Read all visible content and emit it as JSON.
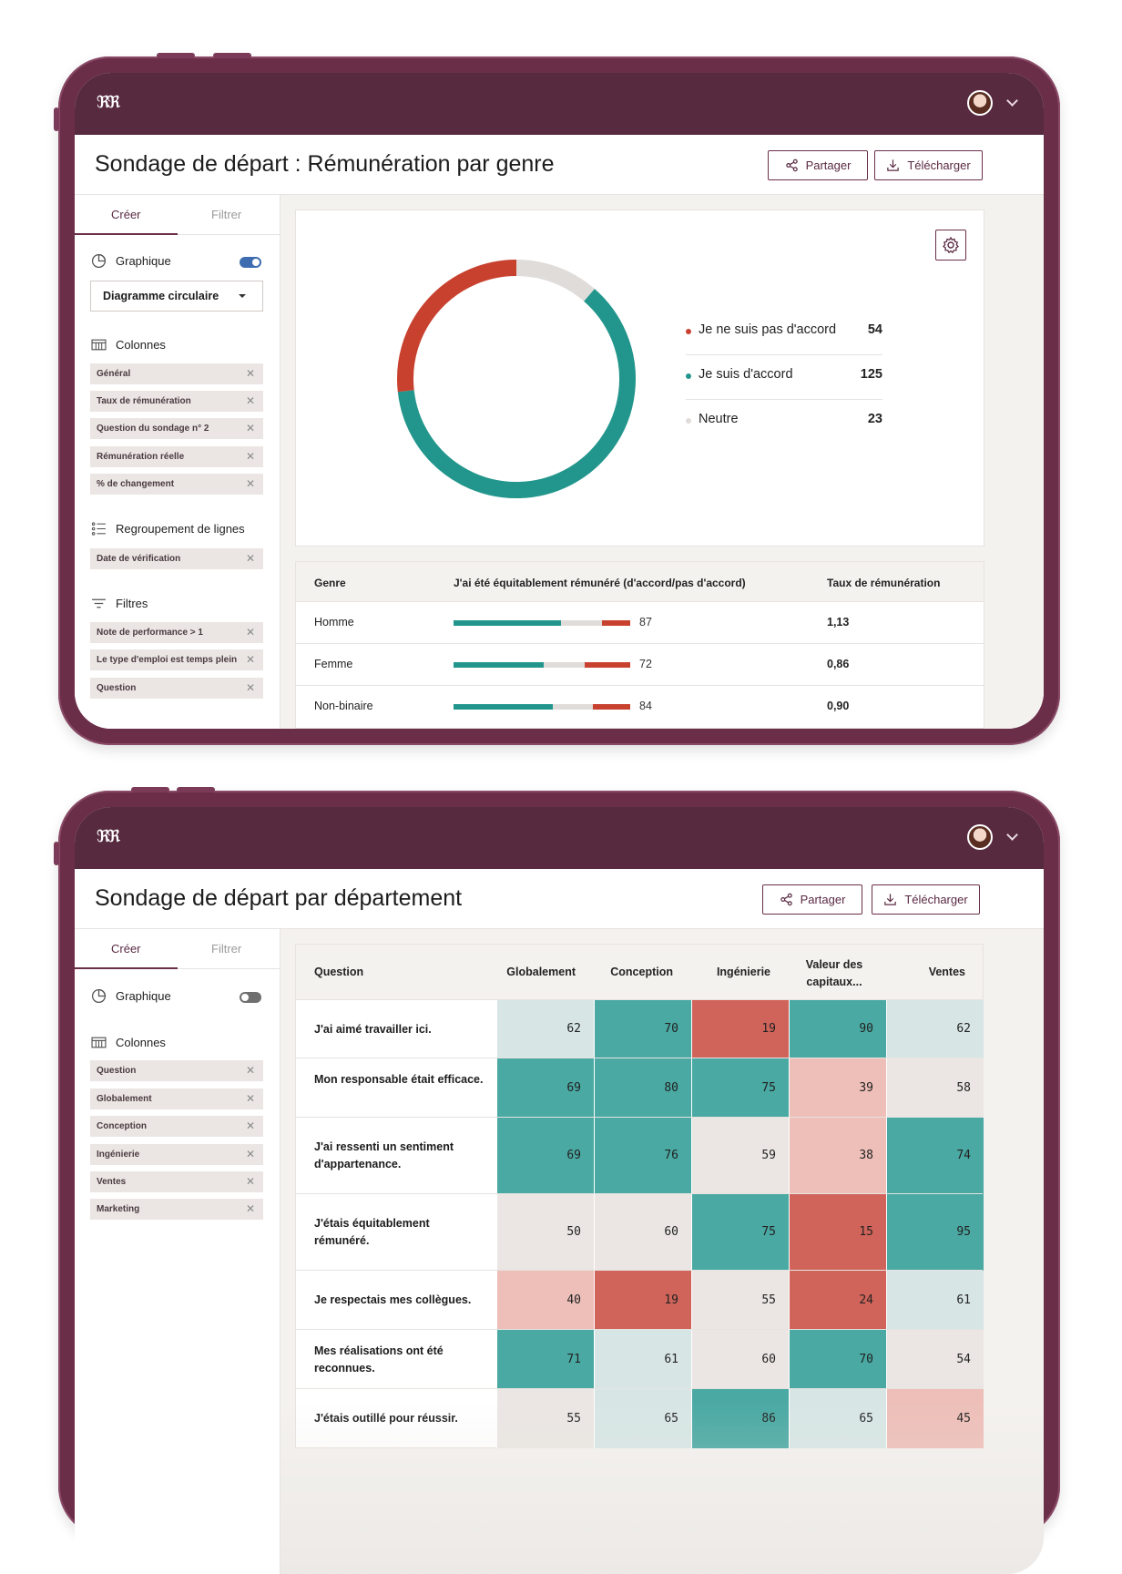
{
  "screen1": {
    "logo": "ℜℜ",
    "title": "Sondage de départ : Rémunération par genre",
    "share_label": "Partager",
    "download_label": "Télécharger",
    "tabs": {
      "create": "Créer",
      "filter": "Filtrer"
    },
    "chart_section": {
      "label": "Graphique",
      "toggle_on": true,
      "select_value": "Diagramme circulaire"
    },
    "columns_section": {
      "label": "Colonnes",
      "chips": [
        "Général",
        "Taux de rémunération",
        "Question du sondage n° 2",
        "Rémunération réelle",
        "% de changement"
      ]
    },
    "grouping_section": {
      "label": "Regroupement de lignes",
      "chips": [
        "Date de vérification"
      ]
    },
    "filters_section": {
      "label": "Filtres",
      "chips": [
        "Note de performance > 1",
        "Le type d'emploi est temps plein",
        "Question"
      ]
    },
    "legend": [
      {
        "label": "Je ne suis pas d'accord",
        "value": "54",
        "color": "#c8412f"
      },
      {
        "label": "Je suis d'accord",
        "value": "125",
        "color": "#22968c"
      },
      {
        "label": "Neutre",
        "value": "23",
        "color": "#e0dcda"
      }
    ],
    "table": {
      "headers": [
        "Genre",
        "J'ai été équitablement rémunéré (d'accord/pas d'accord)",
        "Taux de rémunération"
      ],
      "rows": [
        {
          "genre": "Homme",
          "agree": 0.61,
          "neutral": 0.23,
          "disagree": 0.16,
          "score": "87",
          "rate": "1,13"
        },
        {
          "genre": "Femme",
          "agree": 0.51,
          "neutral": 0.23,
          "disagree": 0.26,
          "score": "72",
          "rate": "0,86"
        },
        {
          "genre": "Non-binaire",
          "agree": 0.56,
          "neutral": 0.23,
          "disagree": 0.21,
          "score": "84",
          "rate": "0,90"
        }
      ]
    }
  },
  "chart_data": {
    "type": "pie",
    "categories": [
      "Je ne suis pas d'accord",
      "Je suis d'accord",
      "Neutre"
    ],
    "values": [
      54,
      125,
      23
    ],
    "title": "",
    "legend": "right"
  },
  "screen2": {
    "logo": "ℜℜ",
    "title": "Sondage de départ par département",
    "share_label": "Partager",
    "download_label": "Télécharger",
    "tabs": {
      "create": "Créer",
      "filter": "Filtrer"
    },
    "chart_section": {
      "label": "Graphique",
      "toggle_on": false
    },
    "columns_section": {
      "label": "Colonnes",
      "chips": [
        "Question",
        "Globalement",
        "Conception",
        "Ingénierie",
        "Ventes",
        "Marketing"
      ]
    },
    "heatmap": {
      "question_header": "Question",
      "columns": [
        "Globalement",
        "Conception",
        "Ingénierie",
        "Valeur des capitaux...",
        "Ventes"
      ],
      "rows": [
        {
          "q": "J'ai aimé travailler ici.",
          "v": [
            "62",
            "70",
            "19",
            "90",
            "62"
          ]
        },
        {
          "q": "Mon responsable était efficace.",
          "v": [
            "69",
            "80",
            "75",
            "39",
            "58"
          ]
        },
        {
          "q": "J'ai ressenti un sentiment d'appartenance.",
          "v": [
            "69",
            "76",
            "59",
            "38",
            "74"
          ]
        },
        {
          "q": "J'étais équitablement rémunéré.",
          "v": [
            "50",
            "60",
            "75",
            "15",
            "95"
          ]
        },
        {
          "q": "Je respectais mes collègues.",
          "v": [
            "40",
            "19",
            "55",
            "24",
            "61"
          ]
        },
        {
          "q": "Mes réalisations ont été reconnues.",
          "v": [
            "71",
            "61",
            "60",
            "70",
            "54"
          ]
        },
        {
          "q": "J'étais outillé pour réussir.",
          "v": [
            "55",
            "65",
            "86",
            "65",
            "45"
          ]
        }
      ]
    }
  }
}
